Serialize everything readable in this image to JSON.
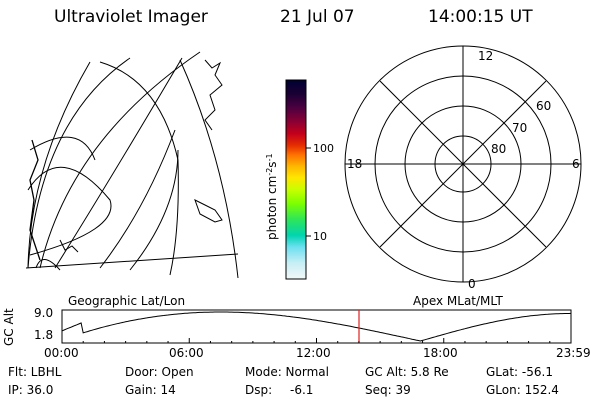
{
  "header": {
    "instrument": "Ultraviolet Imager",
    "date": "21 Jul 07",
    "time": "14:00:15 UT"
  },
  "colorbar": {
    "unit": "photon cm",
    "unit_sup1": "-2",
    "unit_mid": "s",
    "unit_sup2": "-1",
    "tick_100": "100",
    "tick_10": "10",
    "stops": [
      "#000033",
      "#1a0033",
      "#4d0040",
      "#8c0033",
      "#c4001a",
      "#e63000",
      "#ff7700",
      "#ffb300",
      "#ffe600",
      "#c8ff00",
      "#7dff00",
      "#2ee65a",
      "#00d4b0",
      "#6ee0f0",
      "#c8eef5",
      "#f2f7f7"
    ]
  },
  "polar_plot": {
    "mlt_top": "12",
    "mlt_left": "18",
    "mlt_right": "6",
    "mlt_bottom": "0",
    "lat_60": "60",
    "lat_70": "70",
    "lat_80": "80"
  },
  "labels": {
    "geographic": "Geographic Lat/Lon",
    "apex": "Apex MLat/MLT"
  },
  "altitude_plot": {
    "ylabel": "GC Alt",
    "ymax": "9.0",
    "ymin": "1.8",
    "xticks": [
      "00:00",
      "06:00",
      "12:00",
      "18:00",
      "23:59"
    ],
    "marker_time_hours": 14.004,
    "min_time_hours": 16.9
  },
  "info": {
    "flt": "Flt: LBHL",
    "ip": "IP: 36.0",
    "door": "Door: Open",
    "gain": "Gain: 14",
    "mode": "Mode: Normal",
    "dsp_label": "Dsp:",
    "dsp_value": "-6.1",
    "gcalt": "GC Alt: 5.8 Re",
    "seq": "Seq: 39",
    "glat": "GLat: -56.1",
    "glon": "GLon: 152.4"
  }
}
